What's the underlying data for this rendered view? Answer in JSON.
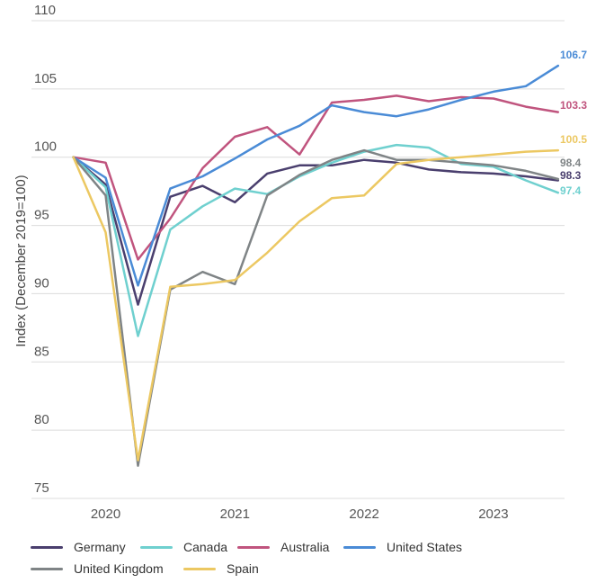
{
  "chart_data": {
    "type": "line",
    "ylabel": "Index (December 2019=100)",
    "ylim": [
      75,
      110
    ],
    "yticks": [
      "75",
      "80",
      "85",
      "90",
      "95",
      "100",
      "105",
      "110"
    ],
    "xticks": [
      {
        "label": "2020",
        "x": 2020.0
      },
      {
        "label": "2021",
        "x": 2021.0
      },
      {
        "label": "2022",
        "x": 2022.0
      },
      {
        "label": "2023",
        "x": 2023.0
      }
    ],
    "xlim": [
      2019.6,
      2023.55
    ],
    "legend_position": "bottom",
    "series": [
      {
        "name": "Germany",
        "color": "#4a3f6e",
        "end_label": "98.3",
        "x": [
          2019.75,
          2020.0,
          2020.25,
          2020.5,
          2020.75,
          2021.0,
          2021.25,
          2021.5,
          2021.75,
          2022.0,
          2022.25,
          2022.5,
          2022.75,
          2023.0,
          2023.25,
          2023.5
        ],
        "y": [
          100.0,
          98.0,
          89.2,
          97.1,
          97.9,
          96.7,
          98.8,
          99.4,
          99.4,
          99.8,
          99.6,
          99.1,
          98.9,
          98.8,
          98.6,
          98.3
        ]
      },
      {
        "name": "Canada",
        "color": "#6fd0cf",
        "end_label": "97.4",
        "x": [
          2019.75,
          2020.0,
          2020.25,
          2020.5,
          2020.75,
          2021.0,
          2021.25,
          2021.5,
          2021.75,
          2022.0,
          2022.25,
          2022.5,
          2022.75,
          2023.0,
          2023.25,
          2023.5
        ],
        "y": [
          100.0,
          97.8,
          86.9,
          94.7,
          96.4,
          97.7,
          97.3,
          98.6,
          99.6,
          100.4,
          100.9,
          100.7,
          99.5,
          99.3,
          98.3,
          97.4
        ]
      },
      {
        "name": "Australia",
        "color": "#c0547e",
        "end_label": "103.3",
        "x": [
          2019.75,
          2020.0,
          2020.25,
          2020.5,
          2020.75,
          2021.0,
          2021.25,
          2021.5,
          2021.75,
          2022.0,
          2022.25,
          2022.5,
          2022.75,
          2023.0,
          2023.25,
          2023.5
        ],
        "y": [
          100.0,
          99.6,
          92.5,
          95.5,
          99.2,
          101.5,
          102.2,
          100.2,
          104.0,
          104.2,
          104.5,
          104.1,
          104.4,
          104.3,
          103.7,
          103.3
        ]
      },
      {
        "name": "United States",
        "color": "#4a8bd6",
        "end_label": "106.7",
        "x": [
          2019.75,
          2020.0,
          2020.25,
          2020.5,
          2020.75,
          2021.0,
          2021.25,
          2021.5,
          2021.75,
          2022.0,
          2022.25,
          2022.5,
          2022.75,
          2023.0,
          2023.25,
          2023.5
        ],
        "y": [
          100.0,
          98.5,
          90.6,
          97.7,
          98.6,
          99.9,
          101.3,
          102.3,
          103.8,
          103.3,
          103.0,
          103.5,
          104.2,
          104.8,
          105.2,
          106.7
        ]
      },
      {
        "name": "United Kingdom",
        "color": "#7f8486",
        "end_label": "98.4",
        "x": [
          2019.75,
          2020.0,
          2020.25,
          2020.5,
          2020.75,
          2021.0,
          2021.25,
          2021.5,
          2021.75,
          2022.0,
          2022.25,
          2022.5,
          2022.75,
          2023.0,
          2023.25,
          2023.5
        ],
        "y": [
          100.0,
          97.2,
          77.4,
          90.3,
          91.6,
          90.7,
          97.2,
          98.7,
          99.8,
          100.5,
          99.8,
          99.8,
          99.6,
          99.4,
          99.0,
          98.4
        ]
      },
      {
        "name": "Spain",
        "color": "#ecc862",
        "end_label": "100.5",
        "x": [
          2019.75,
          2020.0,
          2020.25,
          2020.5,
          2020.75,
          2021.0,
          2021.25,
          2021.5,
          2021.75,
          2022.0,
          2022.25,
          2022.5,
          2022.75,
          2023.0,
          2023.25,
          2023.5
        ],
        "y": [
          100.0,
          94.5,
          77.8,
          90.5,
          90.7,
          91.0,
          93.0,
          95.3,
          97.0,
          97.2,
          99.5,
          99.8,
          100.0,
          100.2,
          100.4,
          100.5
        ]
      }
    ]
  },
  "legend": {
    "rows": [
      [
        "Germany",
        "Canada",
        "Australia",
        "United States"
      ],
      [
        "United Kingdom",
        "Spain"
      ]
    ]
  }
}
